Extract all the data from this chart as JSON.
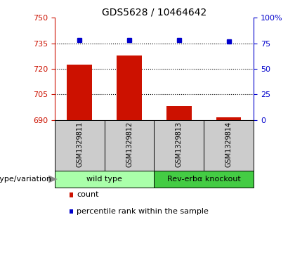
{
  "title": "GDS5628 / 10464642",
  "samples": [
    "GSM1329811",
    "GSM1329812",
    "GSM1329813",
    "GSM1329814"
  ],
  "bar_values": [
    722.5,
    728.0,
    698.0,
    691.5
  ],
  "percentile_values": [
    78,
    78,
    78,
    77
  ],
  "ylim_left": [
    690,
    750
  ],
  "ylim_right": [
    0,
    100
  ],
  "yticks_left": [
    690,
    705,
    720,
    735,
    750
  ],
  "yticks_right": [
    0,
    25,
    50,
    75,
    100
  ],
  "ytick_labels_right": [
    "0",
    "25",
    "50",
    "75",
    "100%"
  ],
  "bar_color": "#cc1100",
  "dot_color": "#0000cc",
  "bar_width": 0.5,
  "groups": [
    {
      "label": "wild type",
      "indices": [
        0,
        1
      ],
      "color": "#aaffaa"
    },
    {
      "label": "Rev-erbα knockout",
      "indices": [
        2,
        3
      ],
      "color": "#44cc44"
    }
  ],
  "genotype_label": "genotype/variation",
  "legend_items": [
    {
      "label": "count",
      "color": "#cc1100"
    },
    {
      "label": "percentile rank within the sample",
      "color": "#0000cc"
    }
  ],
  "title_fontsize": 10,
  "tick_fontsize": 8,
  "sample_fontsize": 7,
  "group_fontsize": 8,
  "legend_fontsize": 8,
  "genotype_fontsize": 8,
  "sample_box_color": "#cccccc",
  "sample_box_edge": "#000000",
  "group_box_edge": "#000000"
}
